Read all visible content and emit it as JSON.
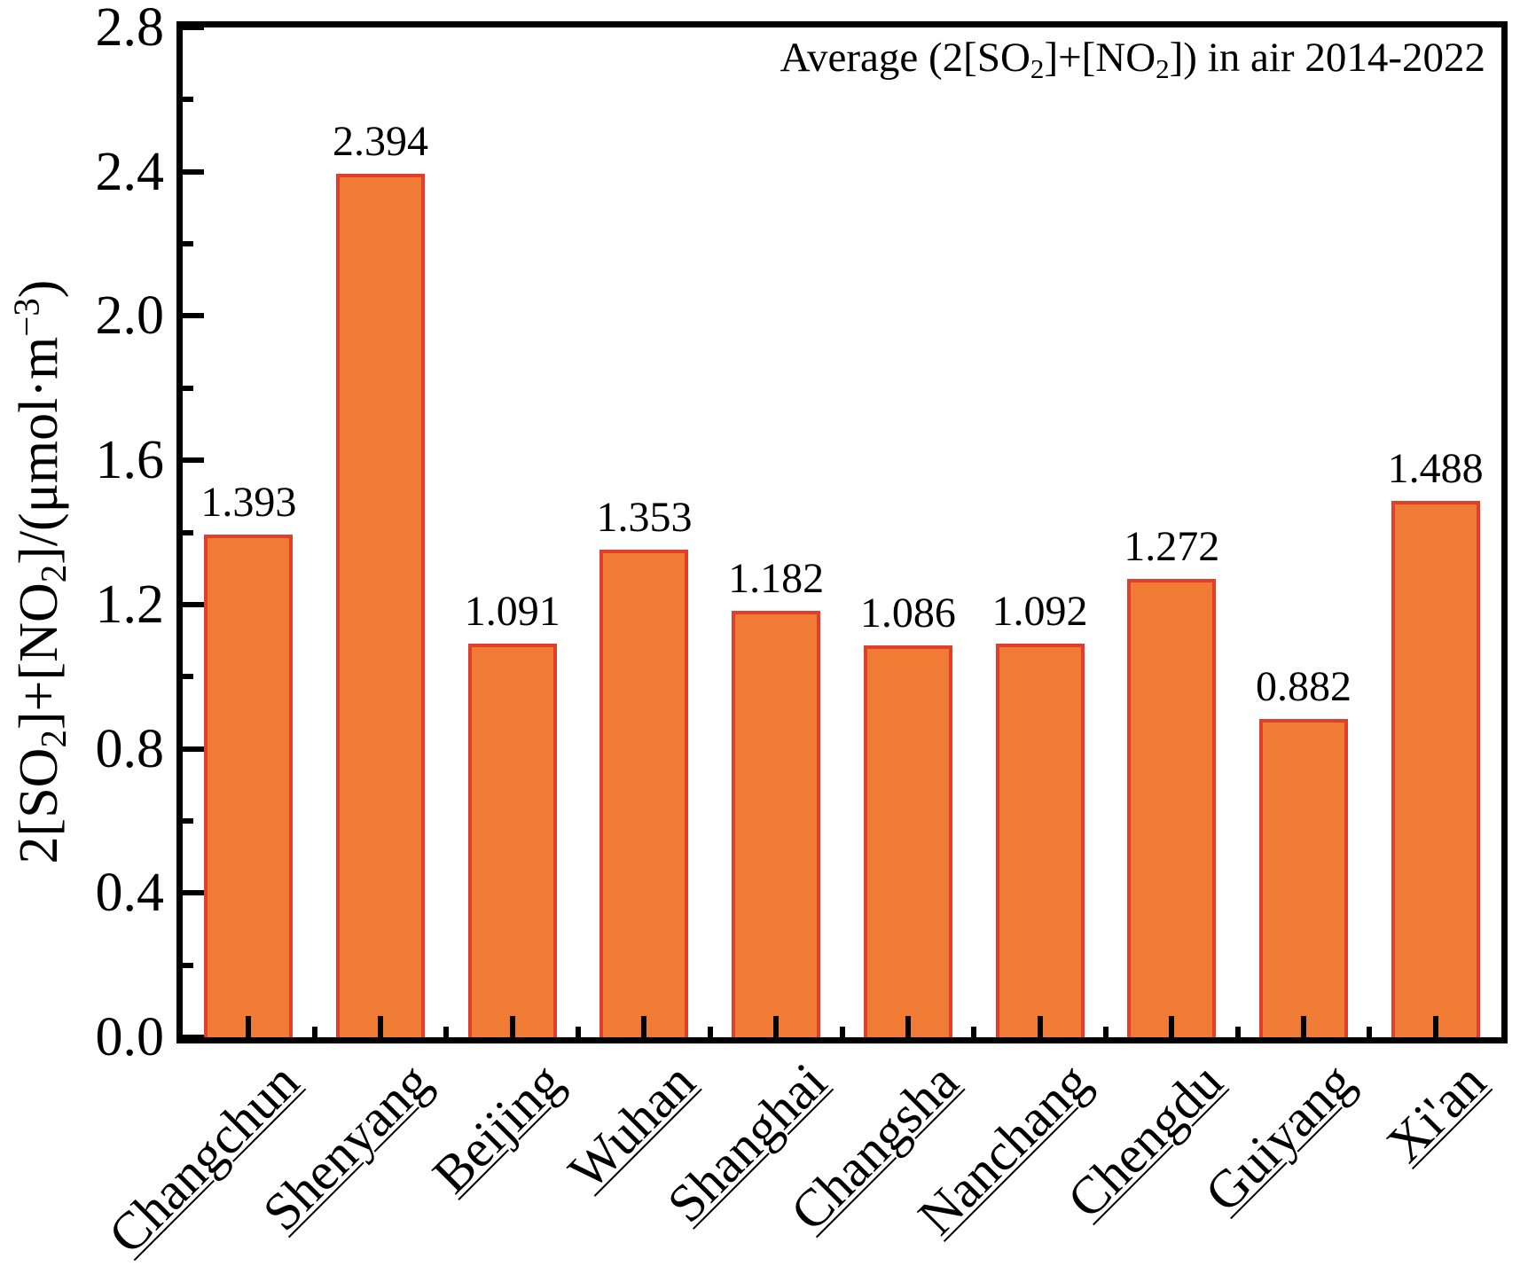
{
  "chart_data": {
    "type": "bar",
    "title": "Average (2[SO2]+[NO2]) in air 2014-2022",
    "title_parts": [
      {
        "t": "Average (2[SO"
      },
      {
        "t": "2",
        "sub": true
      },
      {
        "t": "]+[NO"
      },
      {
        "t": "2",
        "sub": true
      },
      {
        "t": "]) in air 2014-2022"
      }
    ],
    "ylabel": "2[SO2]+[NO2]/(umol*m-3)",
    "ylabel_parts": [
      {
        "t": "2[SO"
      },
      {
        "t": "2",
        "sub": true
      },
      {
        "t": "]+[NO"
      },
      {
        "t": "2",
        "sub": true
      },
      {
        "t": "]/(μmol·m"
      },
      {
        "t": "−3",
        "sup": true
      },
      {
        "t": ")"
      }
    ],
    "xlabel": "",
    "categories": [
      "Changchun",
      "Shenyang",
      "Beijing",
      "Wuhan",
      "Shanghai",
      "Changsha",
      "Nanchang",
      "Chengdu",
      "Guiyang",
      "Xi'an"
    ],
    "values": [
      1.393,
      2.394,
      1.091,
      1.353,
      1.182,
      1.086,
      1.092,
      1.272,
      0.882,
      1.488
    ],
    "value_labels": [
      "1.393",
      "2.394",
      "1.091",
      "1.353",
      "1.182",
      "1.086",
      "1.092",
      "1.272",
      "0.882",
      "1.488"
    ],
    "ylim": [
      0.0,
      2.8
    ],
    "ytick_major_step": 0.4,
    "ytick_minor_step": 0.2,
    "yticks": [
      "0.0",
      "0.4",
      "0.8",
      "1.2",
      "1.6",
      "2.0",
      "2.4",
      "2.8"
    ],
    "legend": "none",
    "grid": false,
    "colors": {
      "bar_fill": "#EF7B35",
      "bar_edge": "#E23E2C",
      "axis": "#000000",
      "text": "#000000",
      "background": "#FFFFFF"
    }
  }
}
